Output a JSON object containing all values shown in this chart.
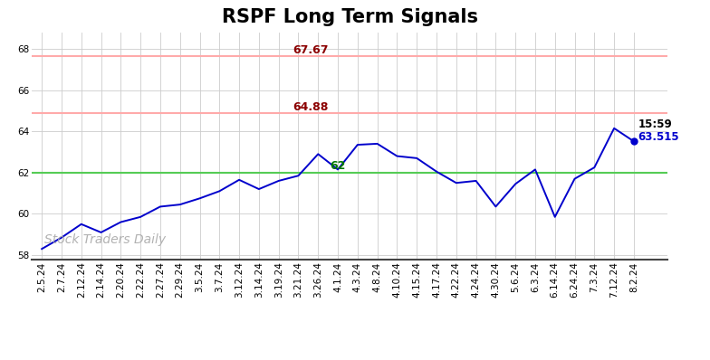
{
  "title": "RSPF Long Term Signals",
  "watermark": "Stock Traders Daily",
  "hline_red1": 67.67,
  "hline_red2": 64.88,
  "hline_green": 62.0,
  "label_red1": "67.67",
  "label_red2": "64.88",
  "label_green": "62",
  "last_label_time": "15:59",
  "last_label_price": "63.515",
  "last_price": 63.515,
  "ylim": [
    57.8,
    68.8
  ],
  "yticks": [
    58,
    60,
    62,
    64,
    66,
    68
  ],
  "x_labels": [
    "2.5.24",
    "2.7.24",
    "2.12.24",
    "2.14.24",
    "2.20.24",
    "2.22.24",
    "2.27.24",
    "2.29.24",
    "3.5.24",
    "3.7.24",
    "3.12.24",
    "3.14.24",
    "3.19.24",
    "3.21.24",
    "3.26.24",
    "4.1.24",
    "4.3.24",
    "4.8.24",
    "4.10.24",
    "4.15.24",
    "4.17.24",
    "4.22.24",
    "4.24.24",
    "4.30.24",
    "5.6.24",
    "6.3.24",
    "6.14.24",
    "6.24.24",
    "7.3.24",
    "7.12.24",
    "8.2.24"
  ],
  "y_values": [
    58.3,
    58.85,
    59.5,
    59.1,
    59.6,
    59.85,
    60.35,
    60.45,
    60.75,
    61.1,
    61.65,
    61.2,
    61.6,
    61.85,
    62.9,
    62.15,
    63.35,
    63.4,
    62.8,
    62.7,
    62.05,
    61.5,
    61.6,
    60.35,
    61.45,
    62.15,
    59.85,
    61.7,
    62.25,
    64.15,
    63.515
  ],
  "line_color": "#0000cc",
  "dot_color": "#0000cc",
  "red_line_color": "#ffaaaa",
  "red_text_color": "#8b0000",
  "green_line_color": "#55cc55",
  "green_text_color": "#007700",
  "bg_color": "#ffffff",
  "grid_color": "#cccccc",
  "title_fontsize": 15,
  "tick_fontsize": 7.5
}
